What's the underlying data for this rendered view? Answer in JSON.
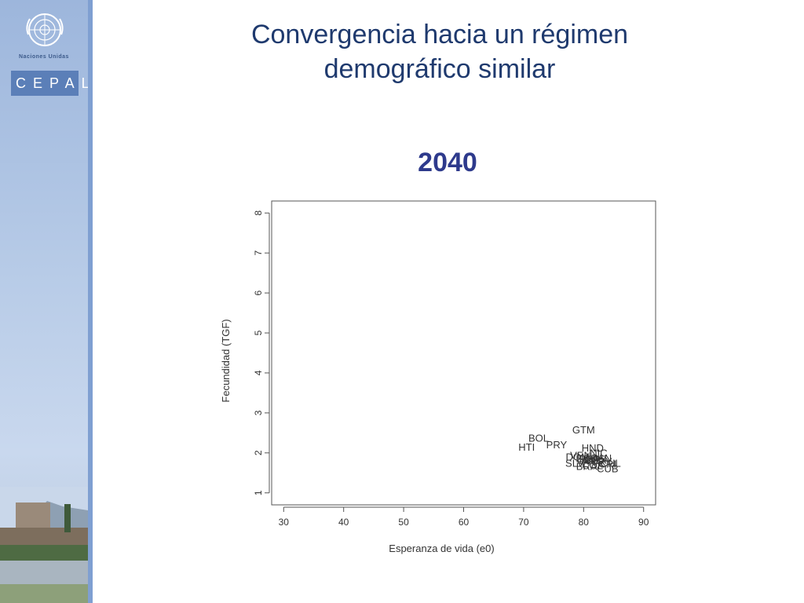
{
  "slide": {
    "title_line1": "Convergencia hacia un régimen",
    "title_line2": "demográfico similar",
    "year": "2040"
  },
  "sidebar": {
    "org_name": "Naciones Unidas",
    "logo_text": "CEPAL"
  },
  "colors": {
    "sidebar": "#9db6dc",
    "stripe": "#7f9fd1",
    "title": "#1f3a6e",
    "year": "#2e3a8c"
  },
  "chart_data": {
    "type": "scatter",
    "xlabel": "Esperanza de vida (e0)",
    "ylabel": "Fecundidad (TGF)",
    "xlim": [
      28,
      92
    ],
    "ylim": [
      0.7,
      8.3
    ],
    "xticks": [
      30,
      40,
      50,
      60,
      70,
      80,
      90
    ],
    "yticks": [
      1,
      2,
      3,
      4,
      5,
      6,
      7,
      8
    ],
    "grid": false,
    "points": [
      {
        "label": "GTM",
        "x": 80.0,
        "y": 2.55
      },
      {
        "label": "BOL",
        "x": 72.5,
        "y": 2.35
      },
      {
        "label": "PRY",
        "x": 75.5,
        "y": 2.18
      },
      {
        "label": "HTI",
        "x": 70.5,
        "y": 2.12
      },
      {
        "label": "HND",
        "x": 81.5,
        "y": 2.1
      },
      {
        "label": "NIC",
        "x": 82.5,
        "y": 1.98
      },
      {
        "label": "VEN",
        "x": 79.5,
        "y": 1.92
      },
      {
        "label": "DOM",
        "x": 79.0,
        "y": 1.88
      },
      {
        "label": "PAN",
        "x": 83.0,
        "y": 1.85
      },
      {
        "label": "ECU",
        "x": 80.5,
        "y": 1.84
      },
      {
        "label": "PER",
        "x": 81.0,
        "y": 1.82
      },
      {
        "label": "MEX",
        "x": 82.0,
        "y": 1.8
      },
      {
        "label": "ARG",
        "x": 81.5,
        "y": 1.78
      },
      {
        "label": "URY",
        "x": 83.0,
        "y": 1.76
      },
      {
        "label": "CHL",
        "x": 84.5,
        "y": 1.72
      },
      {
        "label": "SLV",
        "x": 78.5,
        "y": 1.72
      },
      {
        "label": "CRI",
        "x": 84.0,
        "y": 1.7
      },
      {
        "label": "COL",
        "x": 81.5,
        "y": 1.66
      },
      {
        "label": "BRA",
        "x": 80.5,
        "y": 1.64
      },
      {
        "label": "CUB",
        "x": 84.0,
        "y": 1.58
      }
    ]
  }
}
